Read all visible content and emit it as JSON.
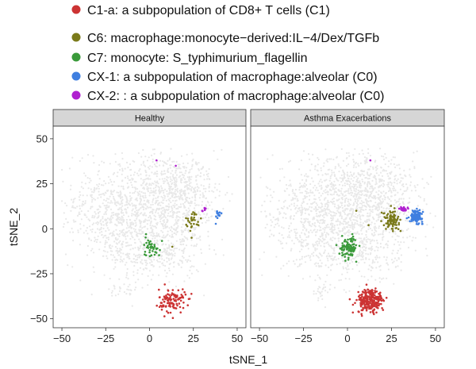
{
  "chart_data": {
    "type": "scatter",
    "xlabel": "tSNE_1",
    "ylabel": "tSNE_2",
    "xlim": [
      -55,
      55
    ],
    "ylim": [
      -55,
      57
    ],
    "x_ticks": [
      -50,
      -25,
      0,
      25,
      50
    ],
    "y_ticks": [
      -50,
      -25,
      0,
      25,
      50
    ],
    "x_tick_labels": [
      "−50",
      "−25",
      "0",
      "25",
      "50"
    ],
    "y_tick_labels": [
      "−50",
      "−25",
      "0",
      "25",
      "50"
    ],
    "panels": [
      "Healthy",
      "Asthma Exacerbations"
    ],
    "legend_position": "top",
    "background_color": "#e8e8e8",
    "series": [
      {
        "name": "C1-a: a subpopulation of CD8+ T cells (C1)",
        "color": "#cc3333",
        "clusters": [
          {
            "cx": 13,
            "cy": -40,
            "sx": 3.8,
            "sy": 3.3,
            "n": [
              110,
              230
            ]
          }
        ]
      },
      {
        "name": "C6: macrophage:monocyte−derived:IL−4/Dex/TGFb",
        "color": "#7a7a1a",
        "clusters": [
          {
            "cx": 25,
            "cy": 5,
            "sx": 2.2,
            "sy": 2.5,
            "n": [
              30,
              90
            ]
          }
        ]
      },
      {
        "name": "C7: monocyte: S_typhimurium_flagellin",
        "color": "#3a9a3a",
        "clusters": [
          {
            "cx": 1,
            "cy": -10,
            "sx": 2.5,
            "sy": 2.8,
            "n": [
              40,
              90
            ]
          }
        ]
      },
      {
        "name": "CX-1: a subpopulation of macrophage:alveolar (C0)",
        "color": "#3f7fe0",
        "clusters": [
          {
            "cx": 39,
            "cy": 7,
            "sx": 1.8,
            "sy": 1.6,
            "n": [
              12,
              110
            ]
          }
        ]
      },
      {
        "name": "CX-2: : a subpopulation of macrophage:alveolar (C0)",
        "color": "#b020d0",
        "clusters": [
          {
            "cx": 32,
            "cy": 11,
            "sx": 1.0,
            "sy": 0.7,
            "n": [
              5,
              25
            ]
          }
        ]
      }
    ]
  }
}
